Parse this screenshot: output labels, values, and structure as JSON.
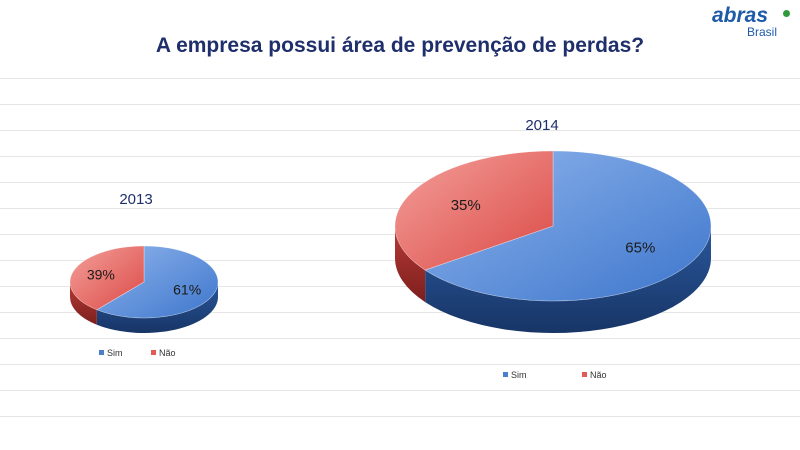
{
  "header": {
    "title": "A empresa possui área de prevenção de perdas?"
  },
  "logo": {
    "brand": "abras",
    "sub": "Brasil"
  },
  "colors": {
    "sim": "#4a7fcb",
    "nao": "#e05a57",
    "title": "#1f2f6b"
  },
  "chart_data": [
    {
      "type": "pie",
      "title": "2013",
      "categories": [
        "Sim",
        "Não"
      ],
      "values": [
        61,
        39
      ],
      "labels": [
        "61%",
        "39%"
      ],
      "legend": "bottom"
    },
    {
      "type": "pie",
      "title": "2014",
      "categories": [
        "Sim",
        "Não"
      ],
      "values": [
        65,
        35
      ],
      "labels": [
        "65%",
        "35%"
      ],
      "legend": "bottom"
    }
  ]
}
